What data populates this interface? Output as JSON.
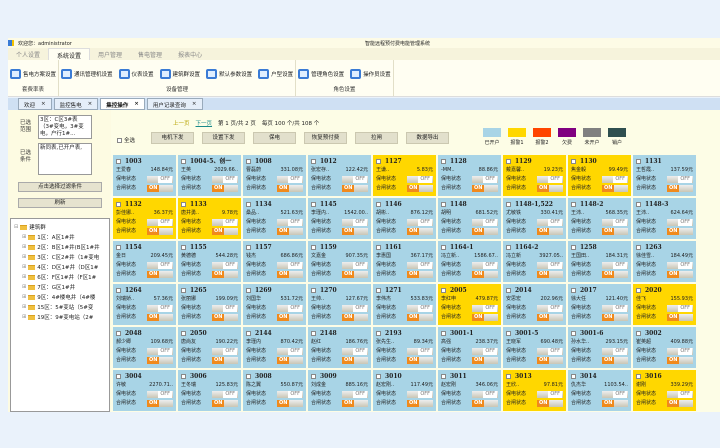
{
  "titlebar": {
    "welcome": "欢迎您：administrator",
    "app_title": "智能远程预付费电能管理系统"
  },
  "menu": [
    "个人设置",
    "系统设置",
    "用户管理",
    "售电管理",
    "报表中心"
  ],
  "ribbon": [
    {
      "group": "套费率表",
      "items": [
        "售电方案设置"
      ]
    },
    {
      "group": "设备管理",
      "items": [
        "通讯管理机设置",
        "仪表设置",
        "建筑群设置",
        "默认参数设置",
        "户型设置"
      ]
    },
    {
      "group": "角色设置",
      "items": [
        "管理角色设置",
        "操作员设置"
      ]
    }
  ],
  "doc_tabs": [
    {
      "label": "欢迎",
      "active": false
    },
    {
      "label": "监控售电",
      "active": false
    },
    {
      "label": "集控操作",
      "active": true
    },
    {
      "label": "用户记录查询",
      "active": false
    }
  ],
  "left": {
    "range_label": "已选范围",
    "range_value": "3区：C区3#表（3#变电，3#变电，户行1#...",
    "cond_label": "已选条件",
    "cond_value": "新同表,已开户表,",
    "filter_button": "点击选择过滤条件",
    "refresh_button": "刷新",
    "tree": {
      "root": "建筑群",
      "children": [
        "1区：A区1#井",
        "2区：B区1#井(B区1#井",
        "3区：C区2#井（1#变电",
        "4区：D区1#井（D区1#",
        "6区：F区1#井（F区1#",
        "7区：G区1#井",
        "9区：4#楼电井（4#楼",
        "15区：5#变站（5#变",
        "19区：9#变电站（2#"
      ]
    }
  },
  "pager": {
    "prev": "上一页",
    "next": "下一页",
    "page_text": "第 1 页/共 2 页",
    "per_page_text": "每页 100 个/共 108 个"
  },
  "select_all": "全选",
  "tools": [
    "电机下发",
    "设置下发",
    "保电",
    "恢复预付费",
    "拉闸",
    "数据导出"
  ],
  "legend": [
    {
      "label": "已开户",
      "color": "#a8d4e6"
    },
    {
      "label": "报警1",
      "color": "#ffd700"
    },
    {
      "label": "报警2",
      "color": "#ff4500"
    },
    {
      "label": "欠费",
      "color": "#800080"
    },
    {
      "label": "未开户",
      "color": "#808080"
    },
    {
      "label": "销户",
      "color": "#2f4f4f"
    }
  ],
  "card_labels": {
    "protect": "保电状态",
    "switch": "合闸状态",
    "off": "OFF",
    "on": "ON"
  },
  "cards": [
    [
      "1003",
      "王爱春",
      "148.84元",
      "b"
    ],
    [
      "1004-5、创一",
      "王英",
      "2029.66..",
      "b"
    ],
    [
      "1008",
      "曹磊蔚",
      "331.08元",
      "b"
    ],
    [
      "1012",
      "张宏存..",
      "122.42元",
      "b"
    ],
    [
      "1127",
      "王谦..",
      "5.83元",
      "y"
    ],
    [
      "1128",
      "-MM..",
      "88.86元",
      "b"
    ],
    [
      "1129",
      "戴嘉馨..",
      "19.23元",
      "y"
    ],
    [
      "1130",
      "焦金毅",
      "99.49元",
      "y"
    ],
    [
      "1131",
      "王哲霞..",
      "137.59元",
      "b"
    ],
    [
      "1132",
      "彭佳娜..",
      "36.37元",
      "y"
    ],
    [
      "1133",
      "唐井勇..",
      "9.78元",
      "y"
    ],
    [
      "1134",
      "桑品..",
      "521.63元",
      "b"
    ],
    [
      "1145",
      "李瑾内..",
      "1542.00..",
      "b"
    ],
    [
      "1146",
      "胡彬..",
      "876.12元",
      "b"
    ],
    [
      "1148",
      "胡明",
      "681.52元",
      "b"
    ],
    [
      "1148-1,522",
      "尤敏铁",
      "330.41元",
      "b"
    ],
    [
      "1148-2",
      "王沛..",
      "568.35元",
      "b"
    ],
    [
      "1148-3",
      "王沛..",
      "624.64元",
      "b"
    ],
    [
      "1154",
      "金日",
      "209.45元",
      "b"
    ],
    [
      "1155",
      "黄德德",
      "544.28元",
      "b"
    ],
    [
      "1157",
      "钱杰",
      "686.86元",
      "b"
    ],
    [
      "1159",
      "文嘉金",
      "907.35元",
      "b"
    ],
    [
      "1161",
      "李惠国",
      "367.17元",
      "b"
    ],
    [
      "1164-1",
      "冯立新..",
      "1586.67..",
      "b"
    ],
    [
      "1164-2",
      "冯立新",
      "3927.05..",
      "b"
    ],
    [
      "1258",
      "王国田..",
      "184.31元",
      "b"
    ],
    [
      "1263",
      "徐佳雪..",
      "184.49元",
      "b"
    ],
    [
      "1264",
      "刘瑞娇..",
      "57.36元",
      "b"
    ],
    [
      "1265",
      "张丽娜",
      "199.09元",
      "b"
    ],
    [
      "1269",
      "刘国华",
      "531.72元",
      "b"
    ],
    [
      "1270",
      "王帅..",
      "127.67元",
      "b"
    ],
    [
      "1271",
      "李伟杰",
      "533.83元",
      "b"
    ],
    [
      "2005",
      "李红申",
      "479.87元",
      "y"
    ],
    [
      "2014",
      "安思宏",
      "202.96元",
      "b"
    ],
    [
      "2017",
      "徐大任",
      "121.40元",
      "b"
    ],
    [
      "2020",
      "佳飞",
      "155.93元",
      "y"
    ],
    [
      "2048",
      "郝少卿",
      "109.68元",
      "b"
    ],
    [
      "2050",
      "唐尚友",
      "190.22元",
      "b"
    ],
    [
      "2144",
      "李瑾内",
      "870.42元",
      "b"
    ],
    [
      "2148",
      "赵红",
      "186.76元",
      "b"
    ],
    [
      "2193",
      "张先生..",
      "89.34元",
      "b"
    ],
    [
      "3001-1",
      "高强",
      "238.37元",
      "b"
    ],
    [
      "3001-5",
      "王晓军",
      "690.48元",
      "b"
    ],
    [
      "3001-6",
      "孙水华..",
      "293.15元",
      "b"
    ],
    [
      "3002",
      "崔英超",
      "409.88元",
      "b"
    ],
    [
      "3004",
      "许敏",
      "2270.71..",
      "b"
    ],
    [
      "3006",
      "王冬瑞",
      "125.83元",
      "b"
    ],
    [
      "3008",
      "陈之翼",
      "550.87元",
      "b"
    ],
    [
      "3009",
      "刘成金",
      "885.16元",
      "b"
    ],
    [
      "3010",
      "赵宏刚..",
      "117.49元",
      "b"
    ],
    [
      "3011",
      "赵宏刚",
      "346.06元",
      "b"
    ],
    [
      "3013",
      "王欣..",
      "97.81元",
      "y"
    ],
    [
      "3014",
      "仇杰华",
      "1103.54..",
      "b"
    ],
    [
      "3016",
      "谢刚",
      "339.29元",
      "y"
    ]
  ]
}
